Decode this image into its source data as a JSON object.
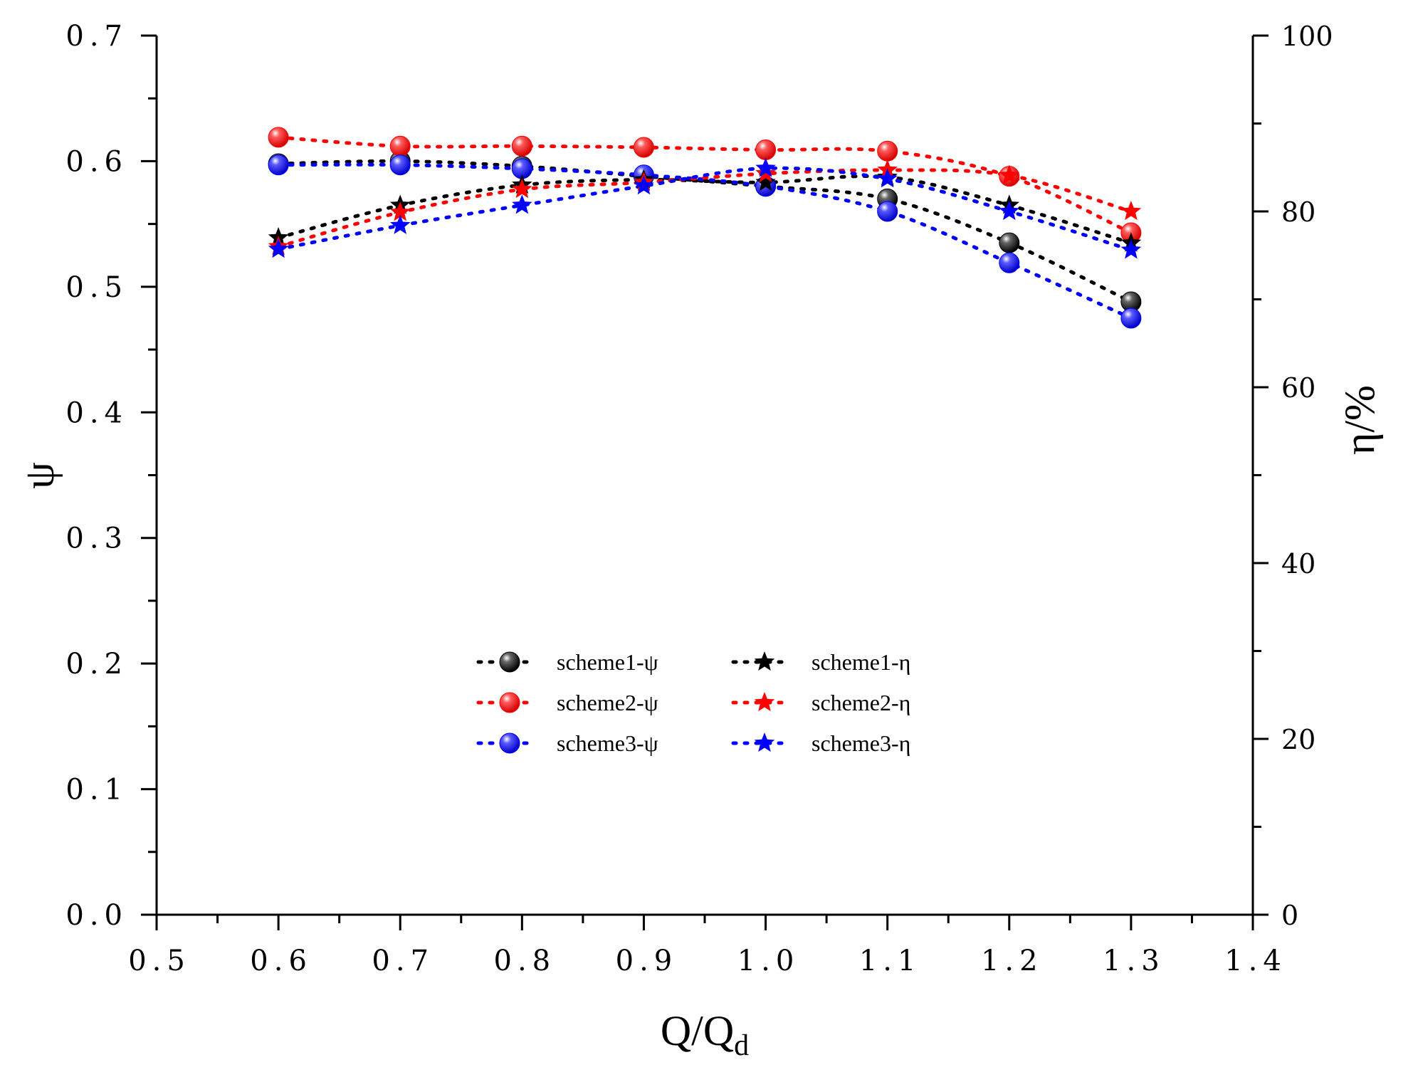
{
  "chart_data": {
    "type": "line",
    "title": "",
    "xlabel": "Q/Q",
    "xlabel_subscript": "d",
    "ylabel_left": "ψ",
    "ylabel_right": "η/%",
    "xlim": [
      0.5,
      1.4
    ],
    "ylim_left": [
      0.0,
      0.7
    ],
    "ylim_right": [
      0,
      100
    ],
    "x_ticks": [
      "0.5",
      "0.6",
      "0.7",
      "0.8",
      "0.9",
      "1.0",
      "1.1",
      "1.2",
      "1.3",
      "1.4"
    ],
    "y_left_ticks": [
      "0.0",
      "0.1",
      "0.2",
      "0.3",
      "0.4",
      "0.5",
      "0.6",
      "0.7"
    ],
    "y_right_ticks": [
      "0",
      "20",
      "40",
      "60",
      "80",
      "100"
    ],
    "grid": false,
    "legend_position": "center",
    "x": [
      0.6,
      0.7,
      0.8,
      0.9,
      1.0,
      1.1,
      1.2,
      1.3
    ],
    "series": [
      {
        "name": "scheme1-ψ",
        "axis": "left",
        "marker": "circle",
        "color": "#000000",
        "values": [
          0.598,
          0.6,
          0.596,
          0.588,
          0.58,
          0.57,
          0.535,
          0.488
        ]
      },
      {
        "name": "scheme2-ψ",
        "axis": "left",
        "marker": "circle",
        "color": "#ff0000",
        "values": [
          0.619,
          0.612,
          0.612,
          0.611,
          0.609,
          0.608,
          0.588,
          0.543
        ]
      },
      {
        "name": "scheme3-ψ",
        "axis": "left",
        "marker": "circle",
        "color": "#0000ff",
        "values": [
          0.597,
          0.597,
          0.594,
          0.589,
          0.58,
          0.56,
          0.519,
          0.475
        ]
      },
      {
        "name": "scheme1-η",
        "axis": "right",
        "marker": "star",
        "color": "#000000",
        "values": [
          77.0,
          80.7,
          83.0,
          83.6,
          83.3,
          83.9,
          80.7,
          76.4
        ]
      },
      {
        "name": "scheme2-η",
        "axis": "right",
        "marker": "star",
        "color": "#ff0000",
        "values": [
          76.0,
          79.9,
          82.5,
          83.3,
          84.3,
          84.7,
          84.1,
          80.0
        ]
      },
      {
        "name": "scheme3-η",
        "axis": "right",
        "marker": "star",
        "color": "#0000ff",
        "values": [
          75.7,
          78.4,
          80.7,
          82.9,
          84.9,
          83.7,
          80.0,
          75.6
        ]
      }
    ]
  }
}
